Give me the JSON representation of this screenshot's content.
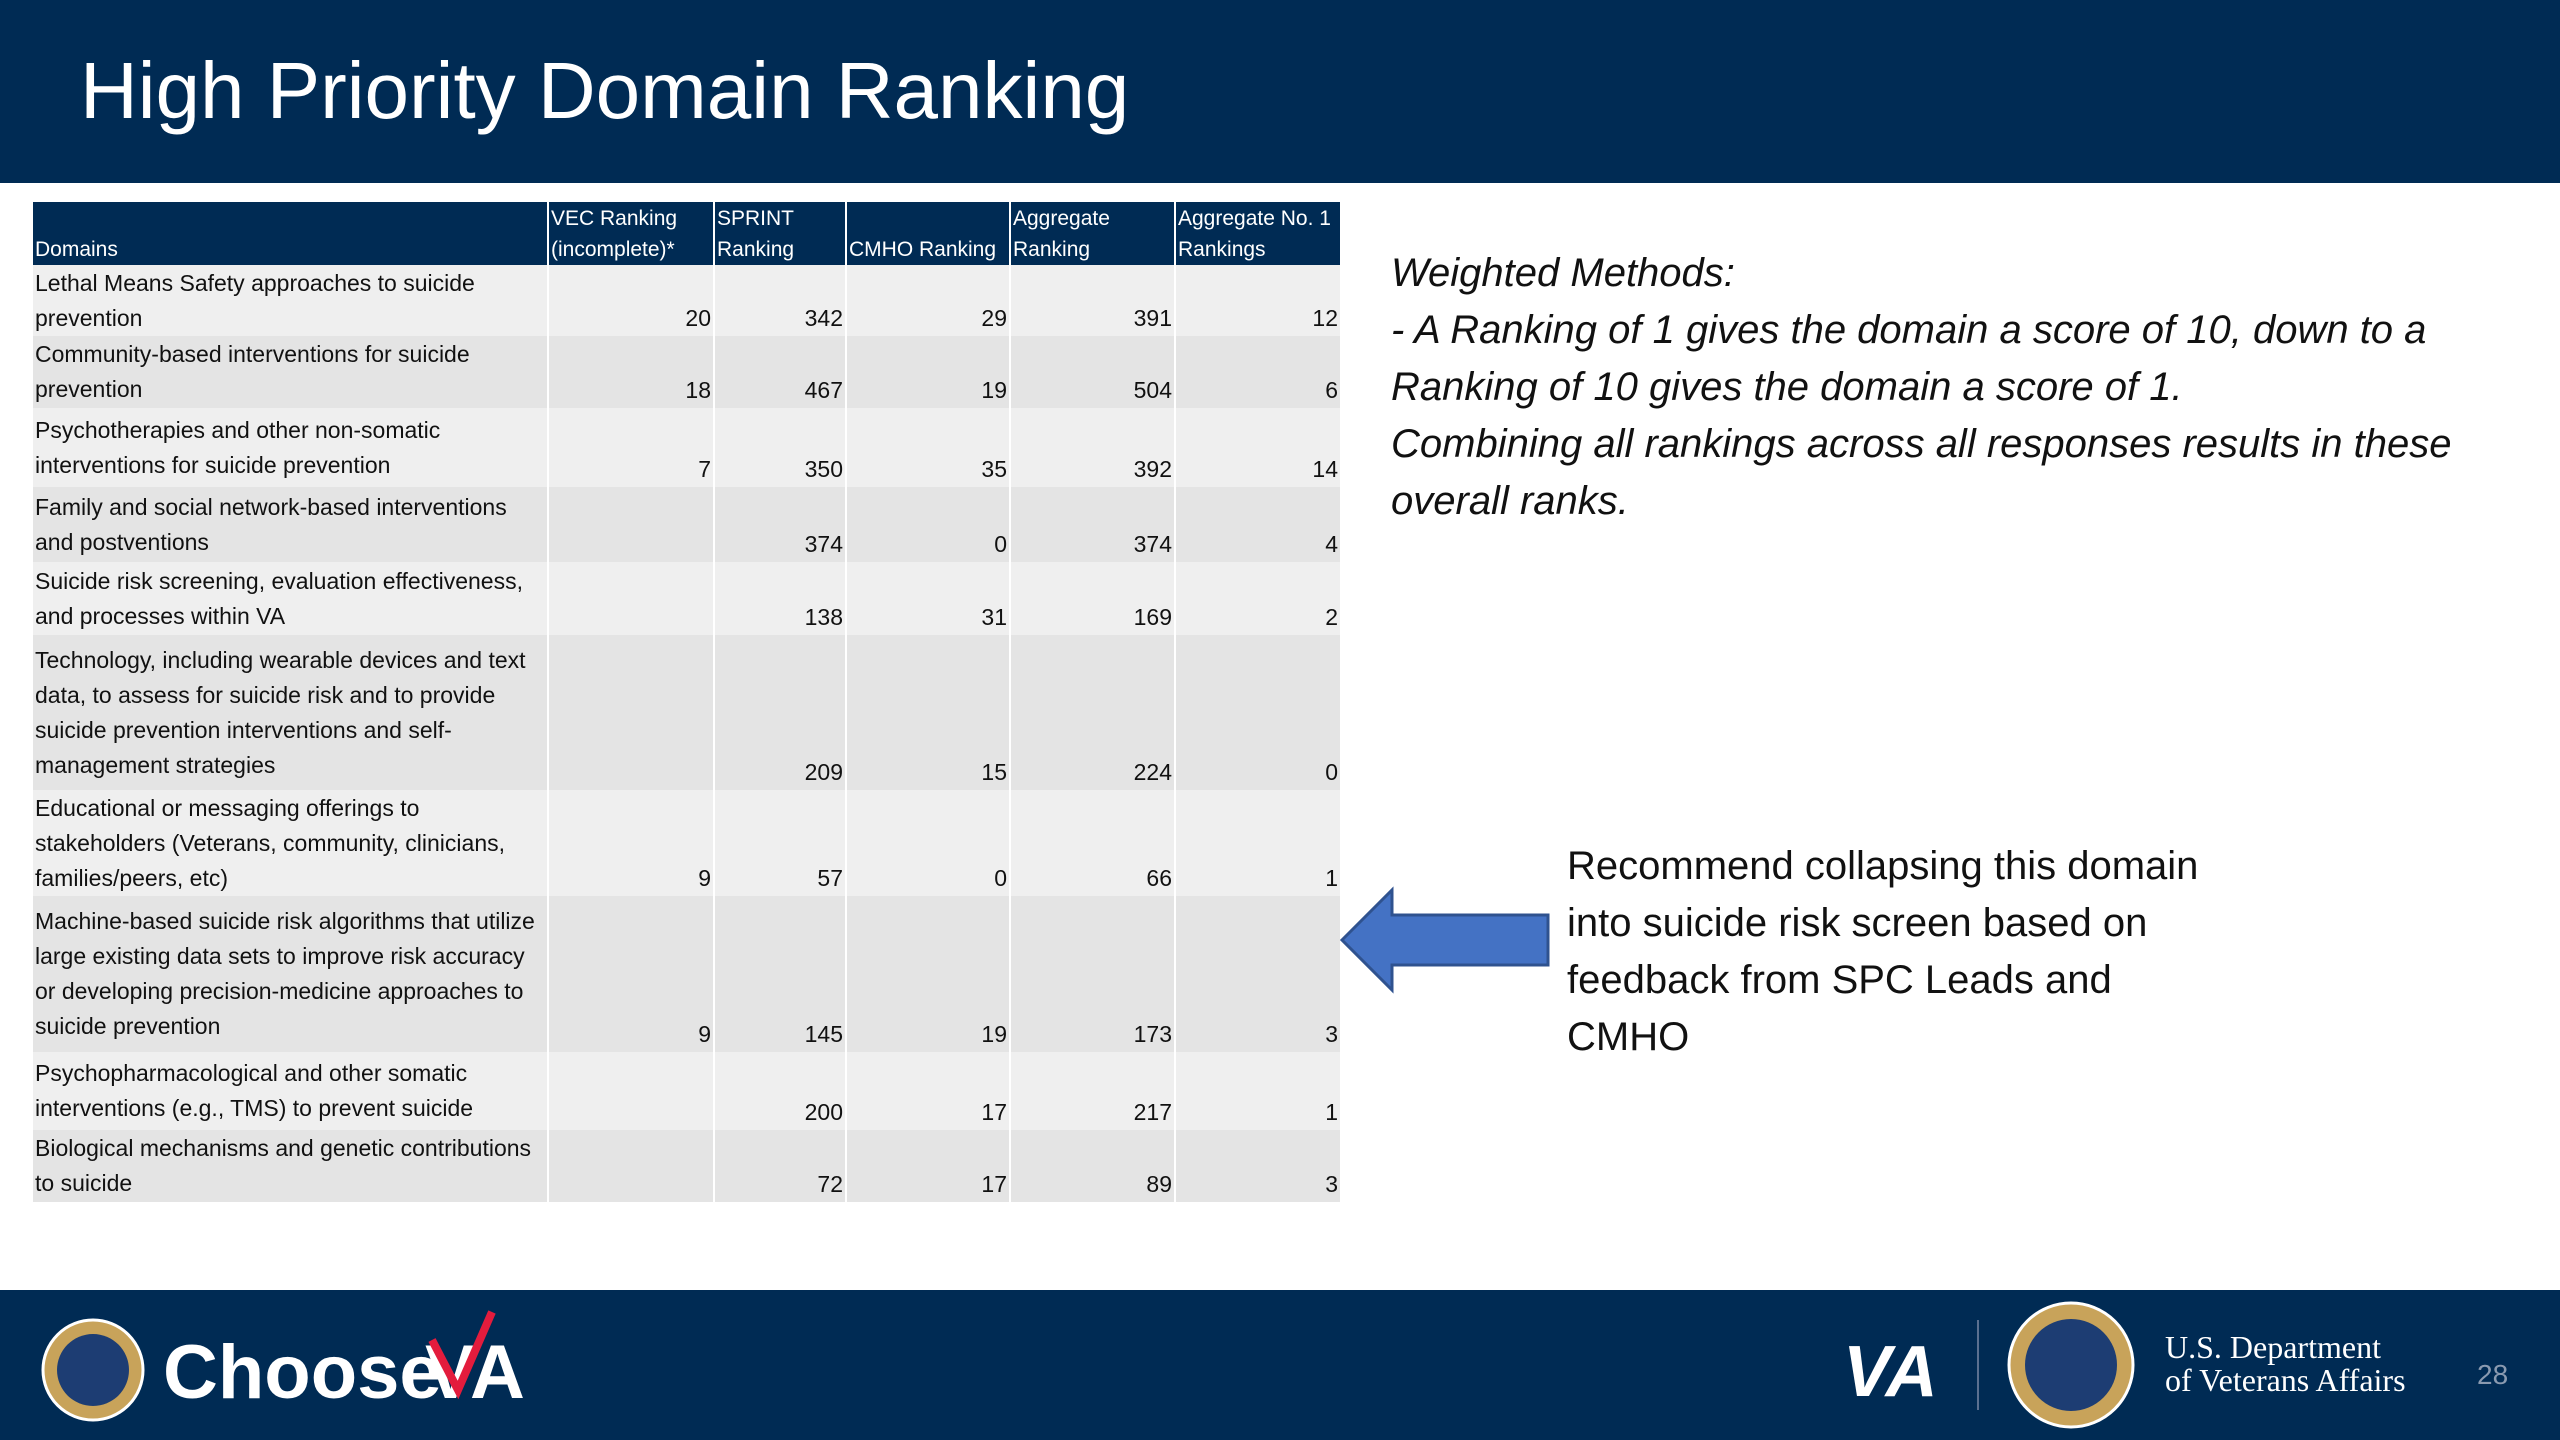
{
  "header": {
    "title": "High Priority Domain Ranking"
  },
  "table": {
    "columns": [
      "Domains",
      "VEC Ranking (incomplete)*",
      "SPRINT Ranking",
      "CMHO Ranking",
      "Aggregate Ranking",
      "Aggregate No. 1 Rankings"
    ],
    "rows": [
      [
        "Lethal Means Safety approaches to suicide prevention",
        20,
        342,
        29,
        391,
        12
      ],
      [
        "Community-based interventions for suicide prevention",
        18,
        467,
        19,
        504,
        6
      ],
      [
        "Psychotherapies and other non-somatic interventions for suicide prevention",
        7,
        350,
        35,
        392,
        14
      ],
      [
        "Family and social network-based interventions and postventions",
        null,
        374,
        0,
        374,
        4
      ],
      [
        "Suicide risk screening, evaluation effectiveness, and processes within VA",
        null,
        138,
        31,
        169,
        2
      ],
      [
        "Technology, including wearable devices and text data, to assess for suicide risk and to provide suicide prevention interventions and self-management strategies",
        null,
        209,
        15,
        224,
        0
      ],
      [
        "Educational or messaging offerings to stakeholders (Veterans, community, clinicians, families/peers, etc)",
        9,
        57,
        0,
        66,
        1
      ],
      [
        "Machine-based suicide risk algorithms that utilize large existing data sets to improve risk accuracy or developing precision-medicine approaches to suicide prevention",
        9,
        145,
        19,
        173,
        3
      ],
      [
        "Psychopharmacological and other somatic interventions (e.g., TMS) to prevent suicide",
        null,
        200,
        17,
        217,
        1
      ],
      [
        "Biological mechanisms and genetic contributions to suicide",
        null,
        72,
        17,
        89,
        3
      ]
    ]
  },
  "notes": {
    "heading": "Weighted Methods:",
    "lines": [
      "- A Ranking of 1 gives the domain a score of 10, down to a Ranking of 10 gives the domain a score of 1.",
      "Combining all rankings across all responses results in these overall ranks."
    ]
  },
  "callout": "Recommend collapsing this domain into suicide risk screen based on feedback from SPC Leads and CMHO",
  "footer": {
    "brand_left": "Choose",
    "brand_right": "VA",
    "logo": "VA",
    "department": [
      "U.S. Department",
      "of Veterans Affairs"
    ],
    "page": "28"
  }
}
